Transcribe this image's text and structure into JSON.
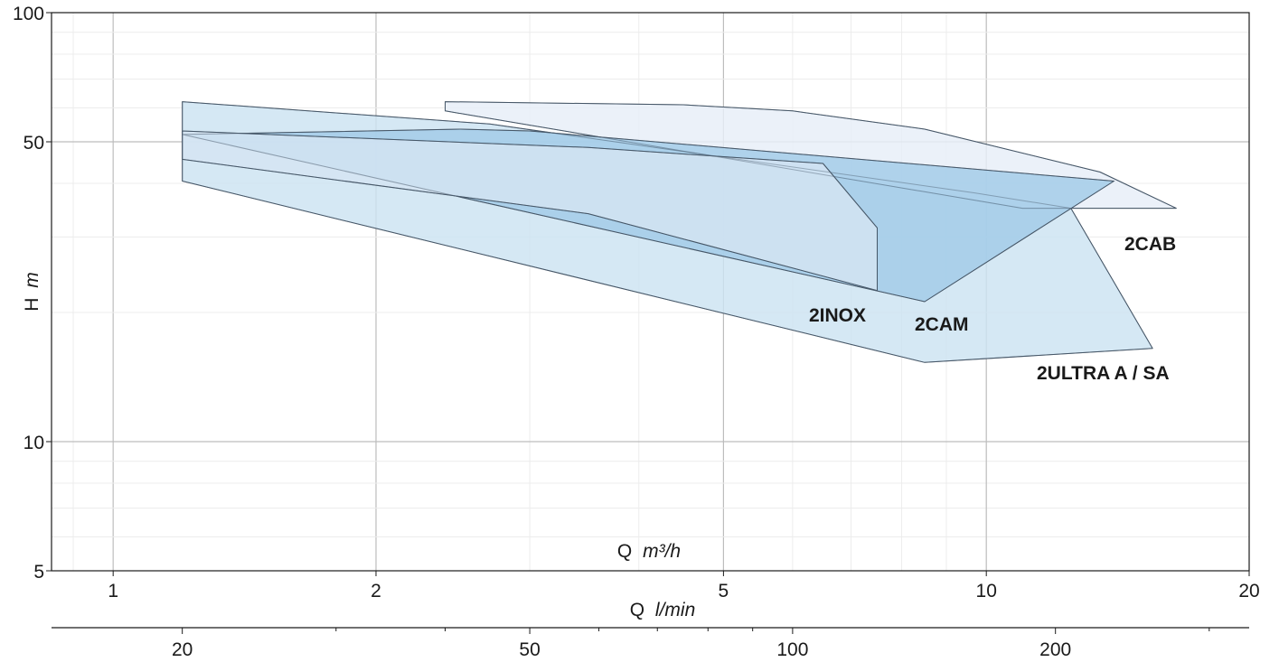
{
  "chart_data": {
    "type": "area",
    "x_scale": "log",
    "y_scale": "log",
    "xlim": [
      0.85,
      20
    ],
    "ylim": [
      5,
      100
    ],
    "x_ticks": [
      1,
      2,
      5,
      10,
      20
    ],
    "x_tick_labels": [
      "1",
      "2",
      "5",
      "10",
      "20"
    ],
    "y_ticks": [
      5,
      10,
      50,
      100
    ],
    "y_tick_labels": [
      "5",
      "10",
      "50",
      "100"
    ],
    "secondary_x_ticks": [
      20,
      50,
      100,
      200
    ],
    "secondary_x_tick_labels": [
      "20",
      "50",
      "100",
      "200"
    ],
    "secondary_x_per_primary": 16.6667,
    "xlabel_prefix": "Q",
    "xlabel_unit": "m³/h",
    "secondary_xlabel_prefix": "Q",
    "secondary_xlabel_unit": "l/min",
    "ylabel_prefix": "H",
    "ylabel_unit": "m",
    "grid": true,
    "series": [
      {
        "name": "2ULTRA A / SA",
        "color": "#cce3f1",
        "points": [
          [
            1.2,
            62
          ],
          [
            2.7,
            55
          ],
          [
            9.7,
            38
          ],
          [
            12.5,
            35
          ],
          [
            15.5,
            16.5
          ],
          [
            8.5,
            15.3
          ],
          [
            1.2,
            40.5
          ]
        ]
      },
      {
        "name": "2CAB",
        "color": "#e6eef8",
        "points": [
          [
            2.4,
            62
          ],
          [
            4.5,
            61
          ],
          [
            6.0,
            59
          ],
          [
            8.5,
            53.5
          ],
          [
            13.5,
            42.5
          ],
          [
            16.5,
            35
          ],
          [
            11.0,
            35
          ],
          [
            2.4,
            59
          ]
        ]
      },
      {
        "name": "2CAM",
        "color": "#a1cbe8",
        "points": [
          [
            1.2,
            52
          ],
          [
            2.5,
            53.5
          ],
          [
            3.0,
            53
          ],
          [
            14.0,
            40.5
          ],
          [
            8.5,
            21.2
          ],
          [
            1.2,
            52
          ]
        ]
      },
      {
        "name": "2INOX",
        "color": "#d4e4f3",
        "points": [
          [
            1.2,
            53
          ],
          [
            3.5,
            48.5
          ],
          [
            6.5,
            44.5
          ],
          [
            7.5,
            31.5
          ],
          [
            7.5,
            22.5
          ],
          [
            3.5,
            34
          ],
          [
            1.2,
            45.5
          ]
        ]
      }
    ]
  }
}
